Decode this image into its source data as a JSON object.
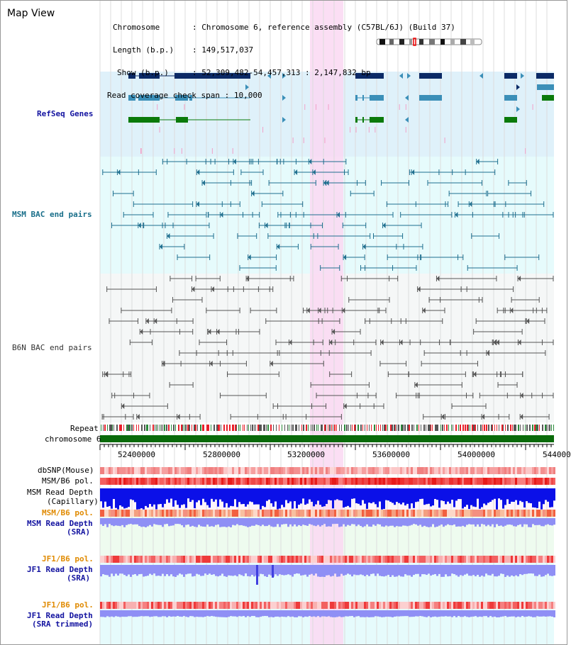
{
  "title": "Map View",
  "info": {
    "chromosome_label": "Chromosome",
    "chromosome_value": "Chromosome 6, reference assembly (C57BL/6J) (Build 37)",
    "length_label": "Length (b.p.)",
    "length_value": "149,517,037",
    "show_label": "Show (b.p.)",
    "show_value": "52,309,482-54,457,313 : 2,147,832 bp",
    "coverage_label": "Read coverage check span",
    "coverage_value": "10,000"
  },
  "tracks": {
    "refseq": "RefSeq Genes",
    "msm_bac": "MSM BAC end pairs",
    "b6n_bac": "B6N BAC end pairs",
    "repeat": "Repeat",
    "chromosome": "chromosome 6",
    "dbsnp": "dbSNP(Mouse)",
    "msm_b6_pol": "MSM/B6 pol.",
    "msm_read_depth": "MSM Read Depth",
    "capillary": "(Capillary)",
    "msm_b6_pol_sra": "MSM/B6 pol.",
    "msm_read_depth_sra": "MSM Read Depth",
    "sra": "(SRA)",
    "jf1_b6_pol": "JF1/B6 pol.",
    "jf1_read_depth": "JF1 Read Depth",
    "jf1_sra": "(SRA)",
    "jf1_b6_pol_2": "JF1/B6 pol.",
    "jf1_read_depth_2": "JF1 Read Depth",
    "jf1_sra_trimmed": "(SRA trimmed)"
  },
  "axis": {
    "ticks": [
      "52400000",
      "52800000",
      "53200000",
      "53600000",
      "54000000",
      "544000"
    ]
  },
  "colors": {
    "refseq_bg": "#dff1fa",
    "msm_bg": "#e6fbfc",
    "highlight": "#fad8f2",
    "gene_dark": "#0b2a66",
    "gene_mid": "#3b8fb8",
    "gene_green": "#0a7a0a",
    "msm_line": "#1f6f8f",
    "b6n_line": "#555555",
    "depth_blue": "#0b10e8",
    "depth_light": "#8f8ff5",
    "label_blue": "#1313a0",
    "label_teal": "#1a6f8a",
    "label_orange": "#e08a00"
  }
}
